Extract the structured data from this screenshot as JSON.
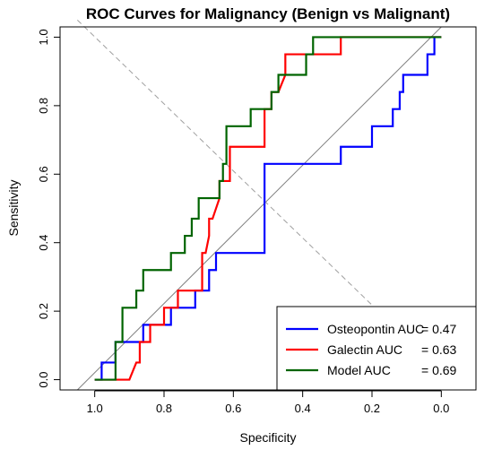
{
  "chart_data": {
    "type": "line",
    "title": "ROC Curves for Malignancy (Benign vs Malignant)",
    "xlabel": "Specificity",
    "ylabel": "Sensitivity",
    "xlim": [
      1.1,
      -0.1
    ],
    "ylim": [
      -0.03,
      1.03
    ],
    "x_reversed": true,
    "xticks": [
      1.0,
      0.8,
      0.6,
      0.4,
      0.2,
      0.0
    ],
    "xtick_labels": [
      "1.0",
      "0.8",
      "0.6",
      "0.4",
      "0.2",
      "0.0"
    ],
    "yticks": [
      0.0,
      0.2,
      0.4,
      0.6,
      0.8,
      1.0
    ],
    "ytick_labels": [
      "0.0",
      "0.2",
      "0.4",
      "0.6",
      "0.8",
      "1.0"
    ],
    "grid": false,
    "legend_position": "bottom-right",
    "reference_lines": [
      {
        "style": "solid",
        "color": "#808080",
        "from": [
          1.05,
          -0.03
        ],
        "to": [
          0.0,
          1.03
        ]
      },
      {
        "style": "dashed",
        "color": "#a0a0a0",
        "from": [
          1.05,
          1.05
        ],
        "to": [
          0.1,
          0.12
        ]
      }
    ],
    "series": [
      {
        "name": "Osteopontin AUC = 0.47",
        "legend_name": "Osteopontin AUC",
        "legend_value": "= 0.47",
        "color": "#0000ff",
        "points": [
          [
            1.0,
            0.0
          ],
          [
            0.98,
            0.0
          ],
          [
            0.98,
            0.05
          ],
          [
            0.94,
            0.05
          ],
          [
            0.94,
            0.11
          ],
          [
            0.86,
            0.11
          ],
          [
            0.86,
            0.16
          ],
          [
            0.78,
            0.16
          ],
          [
            0.78,
            0.21
          ],
          [
            0.71,
            0.21
          ],
          [
            0.71,
            0.26
          ],
          [
            0.69,
            0.26
          ],
          [
            0.69,
            0.26
          ],
          [
            0.67,
            0.26
          ],
          [
            0.67,
            0.32
          ],
          [
            0.65,
            0.32
          ],
          [
            0.65,
            0.37
          ],
          [
            0.63,
            0.37
          ],
          [
            0.55,
            0.37
          ],
          [
            0.51,
            0.37
          ],
          [
            0.51,
            0.63
          ],
          [
            0.29,
            0.63
          ],
          [
            0.29,
            0.68
          ],
          [
            0.2,
            0.68
          ],
          [
            0.2,
            0.74
          ],
          [
            0.14,
            0.74
          ],
          [
            0.14,
            0.79
          ],
          [
            0.12,
            0.79
          ],
          [
            0.12,
            0.84
          ],
          [
            0.11,
            0.84
          ],
          [
            0.11,
            0.89
          ],
          [
            0.04,
            0.89
          ],
          [
            0.04,
            0.95
          ],
          [
            0.02,
            0.95
          ],
          [
            0.02,
            1.0
          ],
          [
            0.0,
            1.0
          ]
        ]
      },
      {
        "name": "Galectin AUC = 0.63",
        "legend_name": "Galectin AUC",
        "legend_value": "= 0.63",
        "color": "#ff0000",
        "points": [
          [
            1.0,
            0.0
          ],
          [
            0.9,
            0.0
          ],
          [
            0.88,
            0.05
          ],
          [
            0.87,
            0.05
          ],
          [
            0.87,
            0.11
          ],
          [
            0.84,
            0.11
          ],
          [
            0.84,
            0.16
          ],
          [
            0.8,
            0.16
          ],
          [
            0.8,
            0.21
          ],
          [
            0.76,
            0.21
          ],
          [
            0.76,
            0.26
          ],
          [
            0.69,
            0.26
          ],
          [
            0.69,
            0.37
          ],
          [
            0.68,
            0.37
          ],
          [
            0.67,
            0.42
          ],
          [
            0.67,
            0.47
          ],
          [
            0.66,
            0.47
          ],
          [
            0.64,
            0.53
          ],
          [
            0.64,
            0.58
          ],
          [
            0.61,
            0.58
          ],
          [
            0.61,
            0.68
          ],
          [
            0.55,
            0.68
          ],
          [
            0.51,
            0.68
          ],
          [
            0.51,
            0.79
          ],
          [
            0.49,
            0.79
          ],
          [
            0.49,
            0.84
          ],
          [
            0.47,
            0.84
          ],
          [
            0.45,
            0.89
          ],
          [
            0.45,
            0.95
          ],
          [
            0.39,
            0.95
          ],
          [
            0.29,
            0.95
          ],
          [
            0.29,
            1.0
          ],
          [
            0.0,
            1.0
          ]
        ]
      },
      {
        "name": "Model AUC = 0.69",
        "legend_name": "Model AUC",
        "legend_value": "= 0.69",
        "color": "#006400",
        "points": [
          [
            1.0,
            0.0
          ],
          [
            0.94,
            0.0
          ],
          [
            0.94,
            0.11
          ],
          [
            0.92,
            0.11
          ],
          [
            0.92,
            0.21
          ],
          [
            0.88,
            0.21
          ],
          [
            0.88,
            0.26
          ],
          [
            0.86,
            0.26
          ],
          [
            0.86,
            0.32
          ],
          [
            0.78,
            0.32
          ],
          [
            0.78,
            0.37
          ],
          [
            0.74,
            0.37
          ],
          [
            0.74,
            0.42
          ],
          [
            0.72,
            0.42
          ],
          [
            0.72,
            0.47
          ],
          [
            0.7,
            0.47
          ],
          [
            0.7,
            0.53
          ],
          [
            0.64,
            0.53
          ],
          [
            0.64,
            0.58
          ],
          [
            0.63,
            0.58
          ],
          [
            0.63,
            0.63
          ],
          [
            0.62,
            0.63
          ],
          [
            0.62,
            0.74
          ],
          [
            0.55,
            0.74
          ],
          [
            0.55,
            0.79
          ],
          [
            0.49,
            0.79
          ],
          [
            0.49,
            0.84
          ],
          [
            0.47,
            0.84
          ],
          [
            0.47,
            0.89
          ],
          [
            0.39,
            0.89
          ],
          [
            0.39,
            0.95
          ],
          [
            0.37,
            0.95
          ],
          [
            0.37,
            1.0
          ],
          [
            0.0,
            1.0
          ]
        ]
      }
    ]
  }
}
